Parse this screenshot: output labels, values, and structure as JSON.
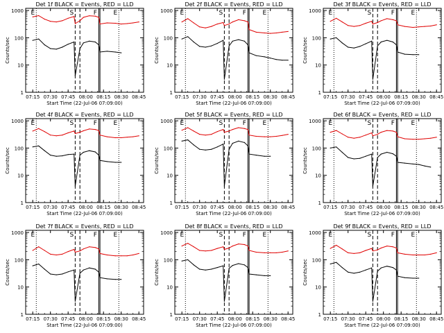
{
  "colors": {
    "events": "#000000",
    "lld": "#e00000",
    "axis": "#000000",
    "background": "#ffffff"
  },
  "common": {
    "ylabel": "Counts/sec",
    "xlabel": "Start Time (22-Jul-06 07:09:00)",
    "x_ticks": [
      "07:15",
      "07:30",
      "07:45",
      "08:00",
      "08:15",
      "08:30",
      "08:45"
    ],
    "y_ticks": [
      "1",
      "10",
      "100",
      "1000"
    ],
    "xlim_minutes_after_07:09": [
      0,
      100
    ],
    "y_scale": "log",
    "ylim": [
      1,
      1200
    ],
    "markers": [
      {
        "label": "E",
        "style": "dotted",
        "time": "07:18"
      },
      {
        "label": "S",
        "style": "dashed",
        "time": "07:51"
      },
      {
        "label": "",
        "style": "dashed",
        "time": "07:55"
      },
      {
        "label": "F",
        "style": "solid",
        "time": "08:11"
      },
      {
        "label": "",
        "style": "solid",
        "time": "08:12"
      },
      {
        "label": "E",
        "style": "dotted",
        "time": "08:28"
      }
    ]
  },
  "chart_data": [
    {
      "type": "line",
      "title": "Det 1f BLACK = Events, RED = LLD",
      "x": [
        "07:15",
        "07:20",
        "07:25",
        "07:30",
        "07:35",
        "07:40",
        "07:45",
        "07:50",
        "07:51",
        "07:55",
        "07:58",
        "08:03",
        "08:08",
        "08:11",
        "08:12",
        "08:18",
        "08:25",
        "08:30",
        "08:35",
        "08:40",
        "08:45"
      ],
      "series": [
        {
          "name": "LLD",
          "values": [
            580,
            650,
            480,
            400,
            380,
            420,
            520,
            600,
            330,
            420,
            560,
            640,
            620,
            560,
            320,
            350,
            340,
            320,
            330,
            350,
            380
          ]
        },
        {
          "name": "Events",
          "values": [
            80,
            90,
            55,
            40,
            38,
            45,
            58,
            70,
            4,
            40,
            65,
            75,
            70,
            55,
            30,
            32,
            30,
            28,
            null,
            null,
            null
          ]
        }
      ]
    },
    {
      "type": "line",
      "title": "Det 2f BLACK = Events, RED = LLD",
      "x": [
        "07:15",
        "07:20",
        "07:25",
        "07:30",
        "07:35",
        "07:40",
        "07:45",
        "07:50",
        "07:51",
        "07:55",
        "07:58",
        "08:03",
        "08:08",
        "08:11",
        "08:12",
        "08:18",
        "08:25",
        "08:30",
        "08:35",
        "08:40",
        "08:45"
      ],
      "series": [
        {
          "name": "LLD",
          "values": [
            380,
            500,
            350,
            250,
            230,
            260,
            320,
            360,
            280,
            320,
            380,
            460,
            420,
            380,
            200,
            160,
            150,
            145,
            150,
            160,
            170
          ]
        },
        {
          "name": "Events",
          "values": [
            90,
            110,
            70,
            48,
            45,
            50,
            62,
            80,
            3,
            50,
            75,
            85,
            75,
            55,
            28,
            22,
            20,
            18,
            16,
            15,
            15
          ]
        }
      ]
    },
    {
      "type": "line",
      "title": "Det 3f BLACK = Events, RED = LLD",
      "x": [
        "07:15",
        "07:20",
        "07:25",
        "07:30",
        "07:35",
        "07:40",
        "07:45",
        "07:50",
        "07:51",
        "07:55",
        "07:58",
        "08:03",
        "08:08",
        "08:11",
        "08:12",
        "08:18",
        "08:25",
        "08:30",
        "08:35",
        "08:40",
        "08:45"
      ],
      "series": [
        {
          "name": "LLD",
          "values": [
            400,
            520,
            380,
            280,
            260,
            280,
            340,
            400,
            320,
            360,
            420,
            500,
            460,
            420,
            300,
            260,
            240,
            250,
            260,
            270,
            300
          ]
        },
        {
          "name": "Events",
          "values": [
            90,
            100,
            65,
            45,
            42,
            48,
            60,
            75,
            3,
            50,
            70,
            80,
            70,
            55,
            30,
            25,
            24,
            24,
            null,
            null,
            null
          ]
        }
      ]
    },
    {
      "type": "line",
      "title": "Det 4f BLACK = Events, RED = LLD",
      "x": [
        "07:15",
        "07:20",
        "07:25",
        "07:30",
        "07:35",
        "07:40",
        "07:45",
        "07:50",
        "07:51",
        "07:55",
        "07:58",
        "08:03",
        "08:08",
        "08:11",
        "08:12",
        "08:18",
        "08:25",
        "08:30",
        "08:35",
        "08:40",
        "08:45"
      ],
      "series": [
        {
          "name": "LLD",
          "values": [
            420,
            520,
            400,
            300,
            280,
            300,
            360,
            420,
            340,
            380,
            430,
            500,
            480,
            440,
            300,
            260,
            240,
            240,
            250,
            260,
            280
          ]
        },
        {
          "name": "Events",
          "values": [
            110,
            120,
            80,
            55,
            50,
            52,
            58,
            60,
            4,
            55,
            70,
            80,
            72,
            55,
            35,
            32,
            30,
            30,
            null,
            null,
            null
          ]
        }
      ]
    },
    {
      "type": "line",
      "title": "Det 5f BLACK = Events, RED = LLD",
      "x": [
        "07:15",
        "07:20",
        "07:25",
        "07:30",
        "07:35",
        "07:40",
        "07:45",
        "07:50",
        "07:51",
        "07:55",
        "07:58",
        "08:03",
        "08:08",
        "08:11",
        "08:12",
        "08:18",
        "08:25",
        "08:30",
        "08:35",
        "08:40",
        "08:45"
      ],
      "series": [
        {
          "name": "LLD",
          "values": [
            450,
            560,
            420,
            320,
            300,
            320,
            400,
            480,
            380,
            420,
            480,
            560,
            520,
            480,
            300,
            270,
            260,
            260,
            270,
            290,
            320
          ]
        },
        {
          "name": "Events",
          "values": [
            180,
            200,
            130,
            90,
            85,
            90,
            110,
            140,
            4,
            90,
            150,
            180,
            160,
            120,
            60,
            55,
            50,
            50,
            null,
            null,
            null
          ]
        }
      ]
    },
    {
      "type": "line",
      "title": "Det 6f BLACK = Events, RED = LLD",
      "x": [
        "07:15",
        "07:20",
        "07:25",
        "07:30",
        "07:35",
        "07:40",
        "07:45",
        "07:50",
        "07:51",
        "07:55",
        "07:58",
        "08:03",
        "08:08",
        "08:11",
        "08:12",
        "08:18",
        "08:25",
        "08:30",
        "08:35",
        "08:40",
        "08:45"
      ],
      "series": [
        {
          "name": "LLD",
          "values": [
            380,
            440,
            330,
            250,
            230,
            250,
            300,
            360,
            280,
            320,
            380,
            440,
            420,
            380,
            260,
            220,
            210,
            210,
            220,
            230,
            250
          ]
        },
        {
          "name": "Events",
          "values": [
            100,
            110,
            70,
            45,
            40,
            42,
            50,
            60,
            4,
            45,
            60,
            70,
            62,
            50,
            30,
            28,
            26,
            25,
            22,
            20,
            null
          ]
        }
      ]
    },
    {
      "type": "line",
      "title": "Det 7f BLACK = Events, RED = LLD",
      "x": [
        "07:15",
        "07:20",
        "07:25",
        "07:30",
        "07:35",
        "07:40",
        "07:45",
        "07:50",
        "07:51",
        "07:55",
        "07:58",
        "08:03",
        "08:08",
        "08:11",
        "08:12",
        "08:18",
        "08:25",
        "08:30",
        "08:35",
        "08:40",
        "08:45"
      ],
      "series": [
        {
          "name": "LLD",
          "values": [
            220,
            300,
            220,
            160,
            150,
            160,
            200,
            240,
            190,
            210,
            250,
            300,
            280,
            250,
            170,
            150,
            140,
            140,
            140,
            150,
            170
          ]
        },
        {
          "name": "Events",
          "values": [
            60,
            70,
            45,
            30,
            28,
            30,
            36,
            42,
            3,
            32,
            42,
            50,
            45,
            35,
            22,
            20,
            19,
            19,
            null,
            null,
            null
          ]
        }
      ]
    },
    {
      "type": "line",
      "title": "Det 8f BLACK = Events, RED = LLD",
      "x": [
        "07:15",
        "07:20",
        "07:25",
        "07:30",
        "07:35",
        "07:40",
        "07:45",
        "07:50",
        "07:51",
        "07:55",
        "07:58",
        "08:03",
        "08:08",
        "08:11",
        "08:12",
        "08:18",
        "08:25",
        "08:30",
        "08:35",
        "08:40",
        "08:45"
      ],
      "series": [
        {
          "name": "LLD",
          "values": [
            320,
            400,
            300,
            220,
            210,
            220,
            260,
            300,
            240,
            270,
            320,
            380,
            360,
            320,
            220,
            190,
            180,
            180,
            180,
            190,
            210
          ]
        },
        {
          "name": "Events",
          "values": [
            90,
            100,
            65,
            45,
            42,
            45,
            52,
            60,
            3,
            48,
            62,
            72,
            65,
            52,
            30,
            28,
            26,
            26,
            null,
            null,
            null
          ]
        }
      ]
    },
    {
      "type": "line",
      "title": "Det 9f BLACK = Events, RED = LLD",
      "x": [
        "07:15",
        "07:20",
        "07:25",
        "07:30",
        "07:35",
        "07:40",
        "07:45",
        "07:50",
        "07:51",
        "07:55",
        "07:58",
        "08:03",
        "08:08",
        "08:11",
        "08:12",
        "08:18",
        "08:25",
        "08:30",
        "08:35",
        "08:40",
        "08:45"
      ],
      "series": [
        {
          "name": "LLD",
          "values": [
            260,
            340,
            250,
            180,
            170,
            180,
            220,
            260,
            210,
            230,
            270,
            320,
            300,
            270,
            180,
            160,
            150,
            150,
            150,
            160,
            180
          ]
        },
        {
          "name": "Events",
          "values": [
            70,
            80,
            52,
            35,
            32,
            35,
            42,
            50,
            3,
            38,
            50,
            58,
            52,
            42,
            25,
            22,
            21,
            21,
            null,
            null,
            null
          ]
        }
      ]
    }
  ]
}
